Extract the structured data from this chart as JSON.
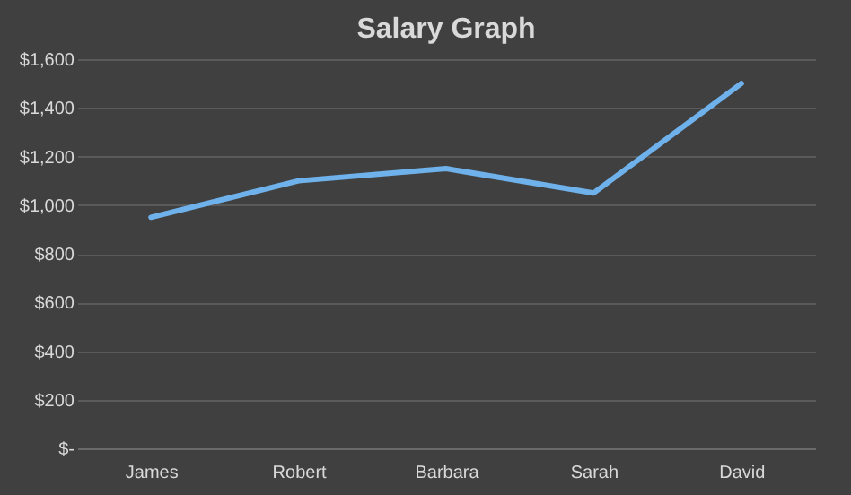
{
  "chart_data": {
    "type": "line",
    "title": "Salary Graph",
    "categories": [
      "James",
      "Robert",
      "Barbara",
      "Sarah",
      "David"
    ],
    "series": [
      {
        "color": "#6fb1ea",
        "values": [
          950,
          1100,
          1150,
          1050,
          1500
        ]
      }
    ],
    "ylim": [
      0,
      1600
    ],
    "yticks": [
      {
        "value": 0,
        "label": "$-"
      },
      {
        "value": 200,
        "label": "$200"
      },
      {
        "value": 400,
        "label": "$400"
      },
      {
        "value": 600,
        "label": "$600"
      },
      {
        "value": 800,
        "label": "$800"
      },
      {
        "value": 1000,
        "label": "$1,000"
      },
      {
        "value": 1200,
        "label": "$1,200"
      },
      {
        "value": 1400,
        "label": "$1,400"
      },
      {
        "value": 1600,
        "label": "$1,600"
      }
    ],
    "grid": "y",
    "marker": "none",
    "line_style": "solid"
  }
}
